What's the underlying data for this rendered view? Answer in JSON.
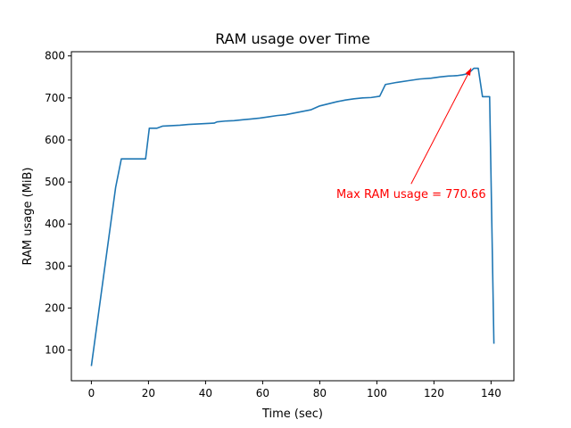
{
  "chart_data": {
    "type": "line",
    "title": "RAM usage over Time",
    "xlabel": "Time (sec)",
    "ylabel": "RAM usage (MiB)",
    "xlim": [
      -7,
      148
    ],
    "ylim": [
      27,
      810
    ],
    "xticks": [
      0,
      20,
      40,
      60,
      80,
      100,
      120,
      140
    ],
    "yticks": [
      100,
      200,
      300,
      400,
      500,
      600,
      700,
      800
    ],
    "grid": false,
    "series": [
      {
        "color": "#1f77b4",
        "x": [
          0,
          8.5,
          10.5,
          19,
          20.3,
          23,
          25,
          28,
          31,
          34,
          37,
          40,
          43,
          44,
          47,
          50,
          53,
          56,
          59,
          62,
          65,
          68,
          71,
          74,
          77,
          80,
          83,
          86,
          89,
          92,
          95,
          98,
          101,
          103,
          107,
          111,
          115,
          119,
          122,
          125,
          128,
          130,
          132,
          134,
          135.5,
          137,
          139.5,
          141
        ],
        "y": [
          62,
          487,
          555,
          555,
          628,
          628,
          633,
          634,
          635,
          637,
          638,
          639,
          640,
          643,
          645,
          646,
          648,
          650,
          652,
          655,
          658,
          660,
          664,
          668,
          672,
          681,
          686,
          691,
          695,
          698,
          700,
          701,
          704,
          732,
          737,
          741,
          745,
          747,
          750,
          752,
          753,
          755,
          758,
          770.66,
          770.66,
          703,
          703,
          115
        ]
      }
    ],
    "annotation": {
      "text": "Max RAM usage = 770.66",
      "color": "#ff0000",
      "point": [
        133,
        770.66
      ],
      "text_pos": [
        112,
        470
      ]
    }
  }
}
